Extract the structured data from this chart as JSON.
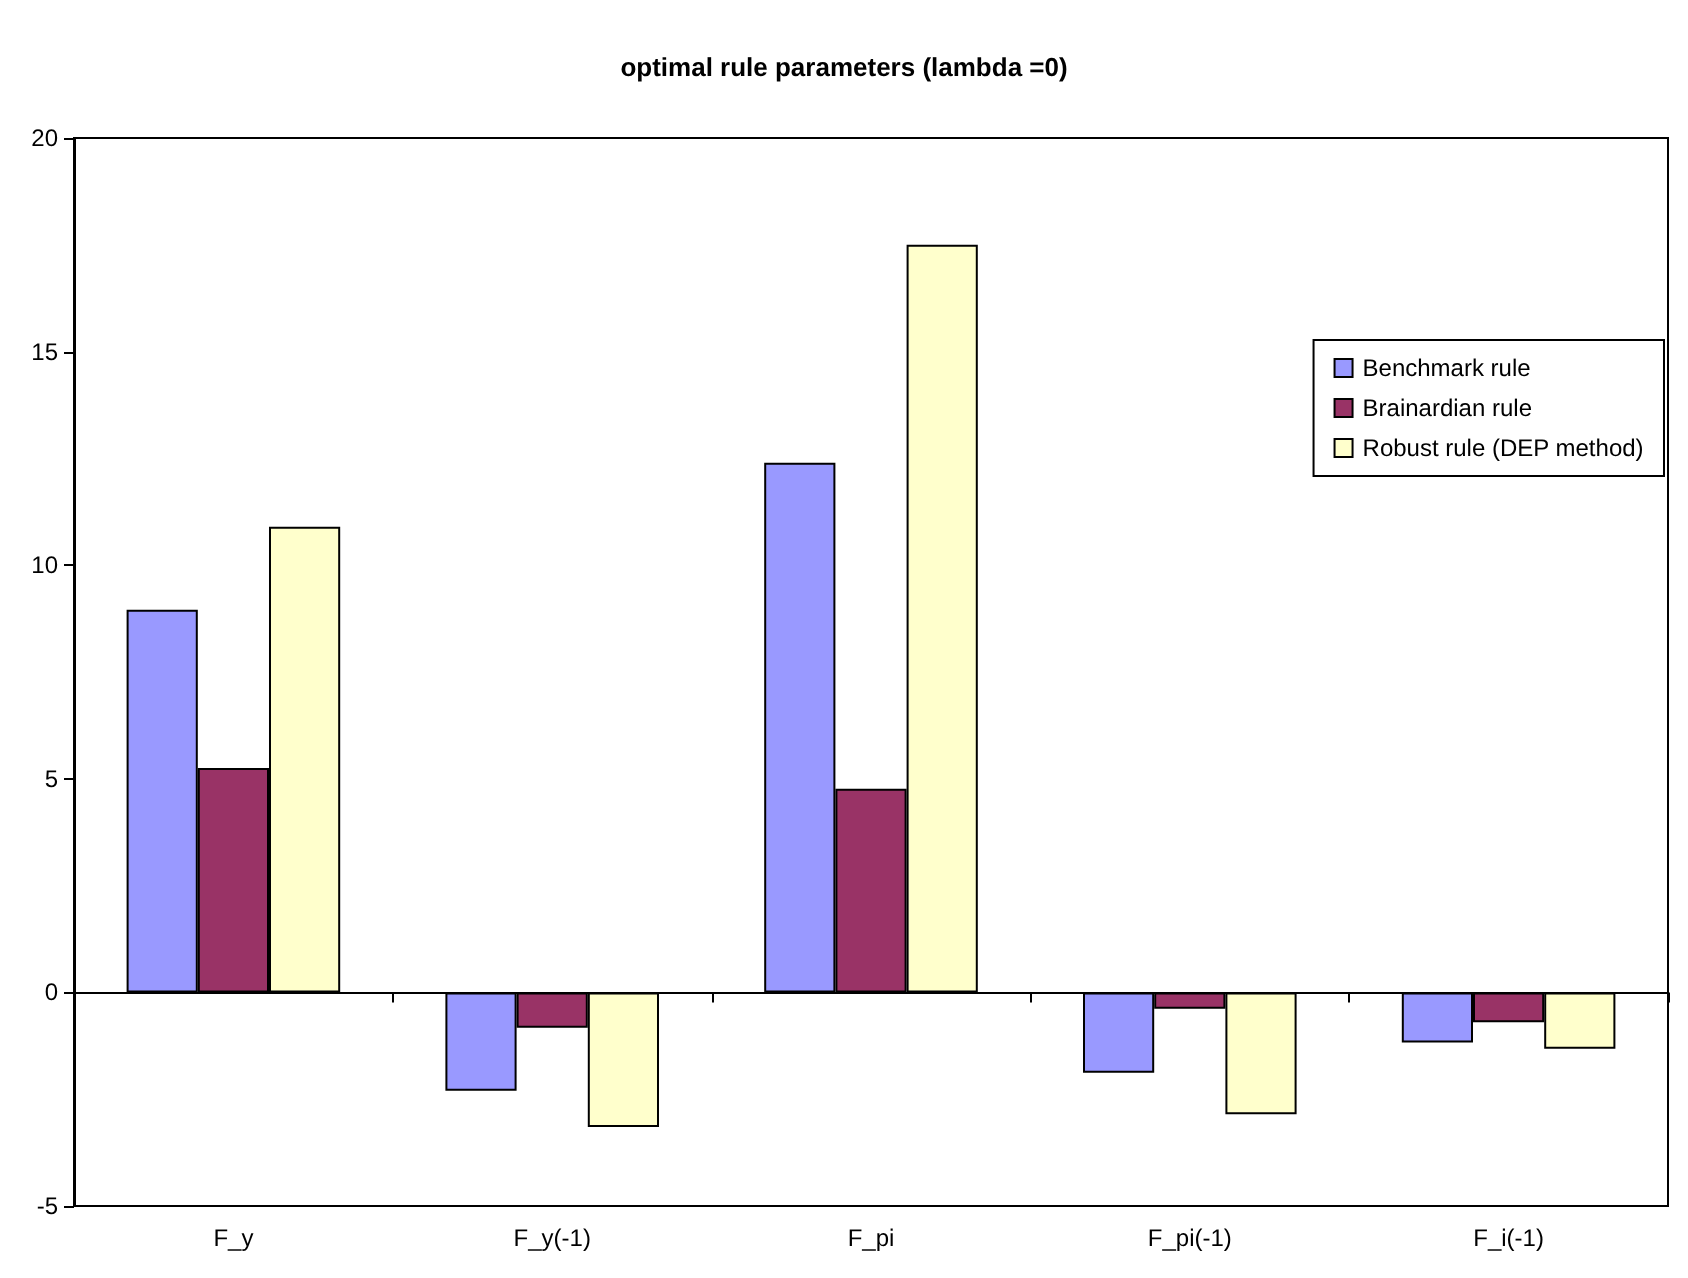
{
  "chart_data": {
    "type": "bar",
    "title": "optimal rule parameters (lambda =0)",
    "categories": [
      "F_y",
      "F_y(-1)",
      "F_pi",
      "F_pi(-1)",
      "F_i(-1)"
    ],
    "series": [
      {
        "name": "Benchmark rule",
        "color": "#9999ff",
        "values": [
          8.96,
          -2.3,
          12.4,
          -1.88,
          -1.17
        ]
      },
      {
        "name": "Brainardian rule",
        "color": "#993366",
        "values": [
          5.25,
          -0.83,
          4.77,
          -0.38,
          -0.7
        ]
      },
      {
        "name": "Robust rule (DEP method)",
        "color": "#ffffcc",
        "values": [
          10.9,
          -3.15,
          17.5,
          -2.85,
          -1.32
        ]
      }
    ],
    "ylim": [
      -5,
      20
    ],
    "yticks": [
      -5,
      0,
      5,
      10,
      15,
      20
    ],
    "legend": "right"
  }
}
